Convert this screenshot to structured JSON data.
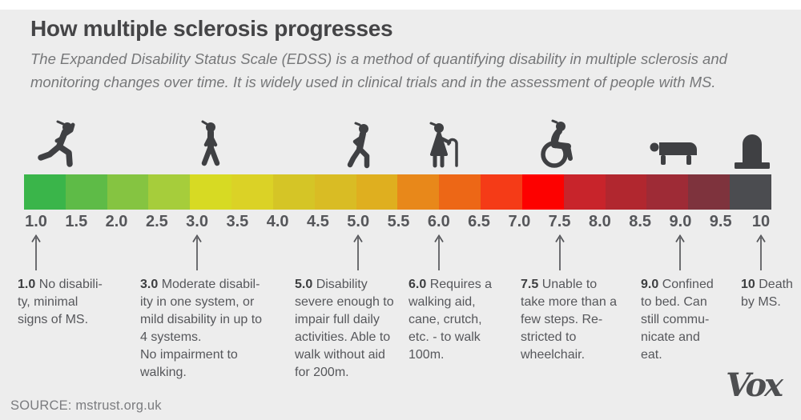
{
  "header": {
    "title": "How multiple sclerosis progresses",
    "subtitle": "The Expanded Disability Status Scale (EDSS) is a method of quantifying disability in multiple sclerosis and monitoring changes over time. It is widely used in clinical trials and in the assessment of people with MS."
  },
  "scale": {
    "name": "EDSS",
    "tick_labels": [
      "1.0",
      "1.5",
      "2.0",
      "2.5",
      "3.0",
      "3.5",
      "4.0",
      "4.5",
      "5.0",
      "5.5",
      "6.0",
      "6.5",
      "7.0",
      "7.5",
      "8.0",
      "8.5",
      "9.0",
      "9.5",
      "10"
    ],
    "segments": [
      {
        "range": "1.0-1.5",
        "color": "#3ab54a"
      },
      {
        "range": "1.5-2.0",
        "color": "#5ebb47"
      },
      {
        "range": "2.0-2.5",
        "color": "#85c441"
      },
      {
        "range": "2.5-3.0",
        "color": "#a6cd3b"
      },
      {
        "range": "3.0-3.5",
        "color": "#d7da23"
      },
      {
        "range": "3.5-4.0",
        "color": "#dbd226"
      },
      {
        "range": "4.0-4.5",
        "color": "#d5c526"
      },
      {
        "range": "4.5-5.0",
        "color": "#d9bc24"
      },
      {
        "range": "5.0-5.5",
        "color": "#dfaf1f"
      },
      {
        "range": "5.5-6.0",
        "color": "#e8881a"
      },
      {
        "range": "6.0-6.5",
        "color": "#ed6716"
      },
      {
        "range": "6.5-7.0",
        "color": "#f53b17"
      },
      {
        "range": "7.0-7.5",
        "color": "#fd0100"
      },
      {
        "range": "7.5-8.0",
        "color": "#c8242b"
      },
      {
        "range": "8.0-8.5",
        "color": "#b1272f"
      },
      {
        "range": "8.5-9.0",
        "color": "#9e2b36"
      },
      {
        "range": "9.0-9.5",
        "color": "#7e333d"
      },
      {
        "range": "9.5-10",
        "color": "#4b4c50"
      }
    ],
    "icons": [
      {
        "name": "runner-icon",
        "depicts": "person running",
        "at_value": "1.0"
      },
      {
        "name": "walking-person-icon",
        "depicts": "person walking normally",
        "at_value": "3.0"
      },
      {
        "name": "hand-on-hip-walker-icon",
        "depicts": "person walking slowly, hand on hip",
        "at_value": "5.0"
      },
      {
        "name": "cane-walker-icon",
        "depicts": "person walking with cane",
        "at_value": "6.0"
      },
      {
        "name": "wheelchair-icon",
        "depicts": "person in wheelchair",
        "at_value": "7.5"
      },
      {
        "name": "bed-icon",
        "depicts": "person confined to bed",
        "at_value": "9.0"
      },
      {
        "name": "tombstone-icon",
        "depicts": "tombstone",
        "at_value": "10"
      }
    ],
    "annotations": [
      {
        "value": "1.0",
        "lines": [
          "No disabili-",
          "ty, minimal",
          "signs of MS."
        ]
      },
      {
        "value": "3.0",
        "lines": [
          "Moderate disabil-",
          "ity in one system, or",
          "mild disability in up to",
          "4 systems.",
          "No impairment to",
          "walking."
        ]
      },
      {
        "value": "5.0",
        "lines": [
          "Disability",
          "severe enough to",
          "impair full daily",
          "activities. Able to",
          "walk without aid",
          "for 200m."
        ]
      },
      {
        "value": "6.0",
        "lines": [
          "Requires a",
          "walking aid,",
          "cane, crutch,",
          "etc. - to walk",
          "100m."
        ]
      },
      {
        "value": "7.5",
        "lines": [
          "Unable to",
          "take more than a",
          "few steps. Re-",
          "stricted to",
          "wheelchair."
        ]
      },
      {
        "value": "9.0",
        "lines": [
          "Confined",
          "to bed. Can",
          "still commu-",
          "nicate and",
          "eat."
        ]
      },
      {
        "value": "10",
        "lines": [
          "Death",
          "by MS."
        ]
      }
    ]
  },
  "footer": {
    "source": "SOURCE: mstrust.org.uk",
    "brand": "Vox"
  },
  "colors": {
    "background": "#ededed",
    "icon": "#3f4043",
    "title_text": "#454547",
    "body_text": "#56575b",
    "bright_red": "#fd0100",
    "end_gray": "#4b4c50"
  }
}
